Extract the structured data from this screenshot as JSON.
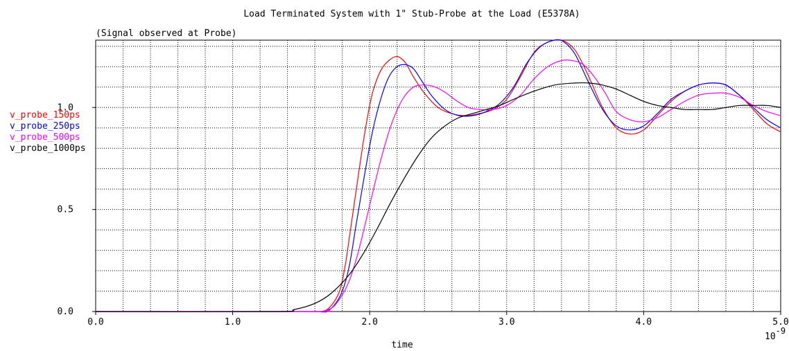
{
  "chart_data": {
    "type": "line",
    "title": "Load Terminated System with 1\" Stub-Probe at the Load (E5378A)",
    "subtitle": "(Signal observed at Probe)",
    "xlabel": "time",
    "x_exponent_label": "10",
    "x_exponent_power": "-9",
    "xlim": [
      0.0,
      5.0
    ],
    "ylim": [
      0.0,
      1.33
    ],
    "x_ticks": [
      {
        "v": 0.0,
        "label": "0.0"
      },
      {
        "v": 1.0,
        "label": "1.0"
      },
      {
        "v": 2.0,
        "label": "2.0"
      },
      {
        "v": 3.0,
        "label": "3.0"
      },
      {
        "v": 4.0,
        "label": "4.0"
      },
      {
        "v": 5.0,
        "label": "5.0"
      }
    ],
    "y_ticks": [
      {
        "v": 0.0,
        "label": "0.0"
      },
      {
        "v": 0.5,
        "label": "0.5"
      },
      {
        "v": 1.0,
        "label": "1.0"
      }
    ],
    "grid": true,
    "legend_position": "left",
    "series": [
      {
        "name": "v_probe_150ps",
        "color": "#ff0000",
        "x": [
          0.0,
          1.5,
          1.65,
          1.72,
          1.78,
          1.82,
          1.86,
          1.92,
          1.97,
          2.02,
          2.08,
          2.14,
          2.2,
          2.26,
          2.32,
          2.4,
          2.5,
          2.6,
          2.7,
          2.8,
          2.9,
          3.0,
          3.1,
          3.2,
          3.3,
          3.4,
          3.5,
          3.6,
          3.7,
          3.8,
          3.9,
          4.0,
          4.1,
          4.2,
          4.3,
          4.4,
          4.5,
          4.6,
          4.7,
          4.8,
          4.9,
          5.0
        ],
        "y": [
          0.0,
          0.0,
          0.0,
          0.03,
          0.1,
          0.22,
          0.4,
          0.68,
          0.9,
          1.07,
          1.18,
          1.23,
          1.25,
          1.22,
          1.15,
          1.07,
          1.0,
          0.97,
          0.96,
          0.97,
          0.99,
          1.04,
          1.15,
          1.27,
          1.32,
          1.33,
          1.28,
          1.15,
          1.0,
          0.9,
          0.87,
          0.89,
          0.96,
          1.03,
          1.08,
          1.11,
          1.12,
          1.11,
          1.06,
          0.99,
          0.92,
          0.88
        ]
      },
      {
        "name": "v_probe_250ps",
        "color": "#0000ff",
        "x": [
          0.0,
          1.52,
          1.67,
          1.74,
          1.8,
          1.85,
          1.9,
          1.96,
          2.02,
          2.08,
          2.14,
          2.2,
          2.26,
          2.32,
          2.38,
          2.45,
          2.55,
          2.65,
          2.75,
          2.85,
          2.95,
          3.05,
          3.15,
          3.25,
          3.35,
          3.42,
          3.5,
          3.6,
          3.7,
          3.8,
          3.9,
          4.0,
          4.1,
          4.2,
          4.3,
          4.4,
          4.5,
          4.6,
          4.7,
          4.8,
          4.9,
          5.0
        ],
        "y": [
          0.0,
          0.0,
          0.0,
          0.03,
          0.1,
          0.22,
          0.42,
          0.66,
          0.88,
          1.04,
          1.15,
          1.2,
          1.21,
          1.19,
          1.13,
          1.06,
          0.99,
          0.96,
          0.96,
          0.98,
          1.02,
          1.1,
          1.22,
          1.3,
          1.33,
          1.32,
          1.26,
          1.12,
          0.99,
          0.91,
          0.89,
          0.91,
          0.97,
          1.04,
          1.08,
          1.11,
          1.12,
          1.11,
          1.06,
          1.0,
          0.94,
          0.9
        ]
      },
      {
        "name": "v_probe_500ps",
        "color": "#ff00ff",
        "x": [
          0.0,
          1.55,
          1.7,
          1.78,
          1.85,
          1.92,
          2.0,
          2.08,
          2.16,
          2.24,
          2.32,
          2.4,
          2.48,
          2.56,
          2.64,
          2.72,
          2.8,
          2.9,
          3.0,
          3.1,
          3.2,
          3.3,
          3.4,
          3.48,
          3.56,
          3.64,
          3.72,
          3.8,
          3.9,
          4.0,
          4.1,
          4.2,
          4.3,
          4.4,
          4.5,
          4.6,
          4.7,
          4.8,
          4.9,
          5.0
        ],
        "y": [
          0.0,
          0.0,
          0.01,
          0.06,
          0.15,
          0.3,
          0.52,
          0.74,
          0.92,
          1.04,
          1.1,
          1.11,
          1.1,
          1.07,
          1.03,
          1.0,
          0.99,
          0.99,
          1.01,
          1.06,
          1.14,
          1.2,
          1.23,
          1.23,
          1.21,
          1.15,
          1.07,
          0.98,
          0.94,
          0.93,
          0.95,
          0.99,
          1.03,
          1.06,
          1.07,
          1.07,
          1.05,
          1.01,
          0.98,
          0.96
        ]
      },
      {
        "name": "v_probe_1000ps",
        "color": "#000000",
        "x": [
          0.0,
          1.3,
          1.45,
          1.6,
          1.72,
          1.85,
          1.95,
          2.05,
          2.15,
          2.25,
          2.35,
          2.45,
          2.55,
          2.65,
          2.75,
          2.85,
          2.95,
          3.05,
          3.2,
          3.35,
          3.5,
          3.6,
          3.7,
          3.8,
          3.9,
          4.0,
          4.1,
          4.2,
          4.3,
          4.4,
          4.5,
          4.6,
          4.7,
          4.8,
          4.9,
          5.0
        ],
        "y": [
          0.0,
          0.0,
          0.01,
          0.04,
          0.09,
          0.18,
          0.28,
          0.4,
          0.53,
          0.65,
          0.76,
          0.85,
          0.91,
          0.95,
          0.97,
          0.99,
          1.01,
          1.04,
          1.08,
          1.11,
          1.12,
          1.12,
          1.11,
          1.09,
          1.06,
          1.03,
          1.01,
          1.0,
          0.99,
          0.99,
          0.99,
          1.0,
          1.01,
          1.01,
          1.01,
          1.0
        ]
      }
    ]
  }
}
